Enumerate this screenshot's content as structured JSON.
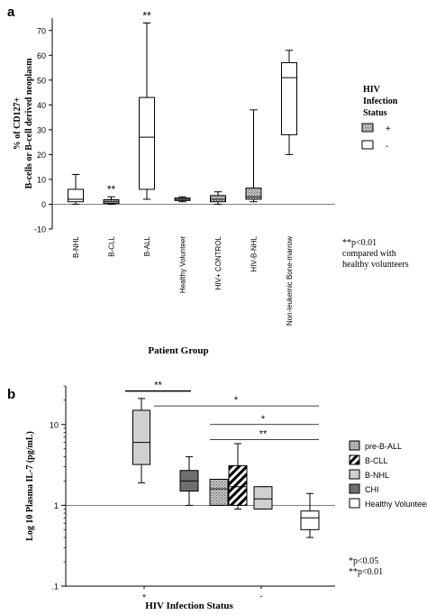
{
  "colors": {
    "stroke": "#000000",
    "gray_fill": "#d0d0d0",
    "dark_fill": "#6f6f6f",
    "mid_fill": "#9a9a9a",
    "white": "#ffffff"
  },
  "chart_data": [
    {
      "panel": "a",
      "type": "box",
      "ylabel": "% of CD127+ B-cells or B-cell derived neoplasm",
      "ylabel_lines": [
        "% of CD127+",
        "B-cells or B-cell derived neoplasm"
      ],
      "xlabel": "Patient Group",
      "ylim": [
        -10,
        75
      ],
      "yticks": [
        -10,
        0,
        10,
        20,
        30,
        40,
        50,
        60,
        70
      ],
      "reference_line": 0,
      "categories": [
        "B-NHL",
        "B-CLL",
        "B-ALL",
        "Healthy Volunteer",
        "HIV+ CONTROL",
        "HIV-B-NHL",
        "Non-leukemic Bone-marrow"
      ],
      "boxes": [
        {
          "category": "B-NHL",
          "min": 0,
          "q1": 1,
          "median": 2,
          "q3": 6,
          "max": 12,
          "fill": "white"
        },
        {
          "category": "B-CLL",
          "min": 0,
          "q1": 0.3,
          "median": 1,
          "q3": 1.8,
          "max": 3,
          "fill": "dots"
        },
        {
          "category": "B-ALL",
          "min": 2,
          "q1": 6,
          "median": 27,
          "q3": 43,
          "max": 73,
          "fill": "white"
        },
        {
          "category": "Healthy Volunteer",
          "min": 1,
          "q1": 1.5,
          "median": 2,
          "q3": 2.5,
          "max": 3,
          "fill": "dots"
        },
        {
          "category": "HIV+ CONTROL",
          "min": 0,
          "q1": 1,
          "median": 2,
          "q3": 3.5,
          "max": 5,
          "fill": "dots"
        },
        {
          "category": "HIV-B-NHL",
          "min": 1,
          "q1": 2,
          "median": 3,
          "q3": 6.5,
          "max": 38,
          "fill": "dots"
        },
        {
          "category": "Non-leukemic Bone-marrow",
          "min": 20,
          "q1": 28,
          "median": 51,
          "q3": 57,
          "max": 62,
          "fill": "white"
        }
      ],
      "annotations": [
        {
          "text": "**",
          "category": "B-ALL"
        },
        {
          "text": "**",
          "category": "B-CLL"
        }
      ],
      "legend": {
        "title_lines": [
          "HIV",
          "Infection",
          "Status"
        ],
        "entries": [
          {
            "label": "+",
            "fill": "dots"
          },
          {
            "label": "-",
            "fill": "white"
          }
        ]
      },
      "note_lines": [
        "**p<0.01",
        "compared with",
        "healthy volunteers"
      ]
    },
    {
      "panel": "b",
      "type": "box",
      "ylabel": "Log 10 Plasma IL-7 (pg/mL)",
      "xlabel": "HIV Infection Status",
      "yscale": "log",
      "ylim": [
        0.1,
        30
      ],
      "yticks": [
        0.1,
        1,
        10
      ],
      "ytick_labels": [
        ".1",
        "1",
        "10"
      ],
      "reference_line": 1,
      "categories": [
        "+",
        "-"
      ],
      "boxes": [
        {
          "group": "+",
          "series": "pre-B-ALL",
          "min": 1.9,
          "q1": 3.2,
          "median": 6,
          "q3": 15,
          "max": 21,
          "fill": "light"
        },
        {
          "group": "+",
          "series": "CHI",
          "min": 1.0,
          "q1": 1.5,
          "median": 2.0,
          "q3": 2.7,
          "max": 4.0,
          "fill": "dark"
        },
        {
          "group": "-",
          "series": "pre-B-ALL",
          "min": 1.0,
          "q1": 1.0,
          "median": 1.6,
          "q3": 2.1,
          "max": 2.1,
          "fill": "dots"
        },
        {
          "group": "-",
          "series": "B-CLL",
          "min": 0.9,
          "q1": 1.0,
          "median": 1.7,
          "q3": 3.1,
          "max": 5.8,
          "fill": "hatch"
        },
        {
          "group": "-",
          "series": "B-NHL",
          "min": 0.9,
          "q1": 0.9,
          "median": 1.2,
          "q3": 1.7,
          "max": 1.7,
          "fill": "light"
        },
        {
          "group": "-",
          "series": "Healthy Volunteer",
          "min": 0.4,
          "q1": 0.5,
          "median": 0.7,
          "q3": 0.85,
          "max": 1.4,
          "fill": "white"
        }
      ],
      "legend": [
        {
          "label": "pre-B-ALL",
          "fill": "dots"
        },
        {
          "label": "B-CLL",
          "fill": "hatch"
        },
        {
          "label": "B-NHL",
          "fill": "light"
        },
        {
          "label": "CHI",
          "fill": "dark"
        },
        {
          "label": "Healthy Volunteer",
          "fill": "white"
        }
      ],
      "brackets": [
        {
          "text": "**",
          "value": 26,
          "from_box": 0,
          "to_box": 1
        },
        {
          "text": "*",
          "value": 17,
          "from_box": 0,
          "to_box": 5
        },
        {
          "text": "*",
          "value": 10,
          "from_box": 2,
          "to_box": 5
        },
        {
          "text": "**",
          "value": 6.5,
          "from_box": 2,
          "to_box": 5
        }
      ],
      "note_lines": [
        "*p<0.05",
        "**p<0.01"
      ]
    }
  ],
  "labels": {
    "panel_a": "a",
    "panel_b": "b"
  }
}
